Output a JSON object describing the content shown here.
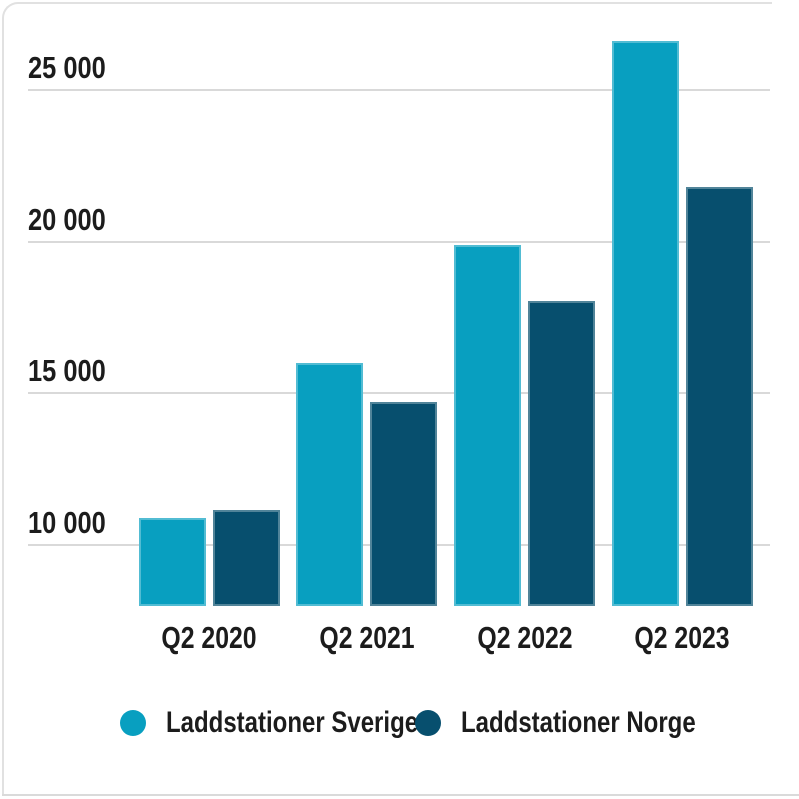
{
  "chart_data": {
    "type": "bar",
    "title": "",
    "xlabel": "",
    "ylabel": "",
    "categories": [
      "Q2 2020",
      "Q2 2021",
      "Q2 2022",
      "Q2 2023"
    ],
    "series": [
      {
        "name": "Laddstationer Sverige",
        "color": "#089fc0",
        "values": [
          10900,
          16000,
          19900,
          26600
        ]
      },
      {
        "name": "Laddstationer Norge",
        "color": "#074f6e",
        "values": [
          11150,
          14700,
          18050,
          21800
        ]
      }
    ],
    "y_ticks": [
      {
        "value": 25000,
        "label": "25 000"
      },
      {
        "value": 20000,
        "label": "20 000"
      },
      {
        "value": 15000,
        "label": "15 000"
      },
      {
        "value": 10000,
        "label": "10 000"
      }
    ],
    "ylim": [
      8000,
      27500
    ],
    "grid": true,
    "legend_position": "bottom"
  },
  "style_colors": {
    "background": "#ffffff",
    "grid": "#d9d9d9",
    "text": "#1c1c1c",
    "card_border": "#e1e1e1"
  }
}
